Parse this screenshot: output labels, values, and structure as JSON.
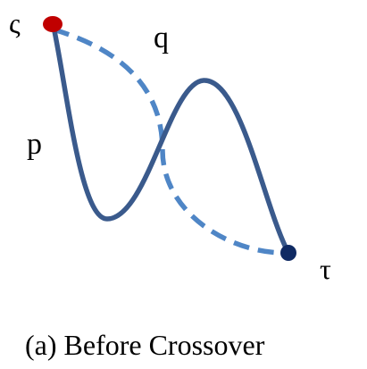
{
  "labels": {
    "start": "ς",
    "end": "τ",
    "path_p": "p",
    "path_q": "q"
  },
  "caption": "(a)  Before Crossover",
  "colors": {
    "start_node": "#c00000",
    "end_node": "#0f2a63",
    "path_p": "#3a5a8c",
    "path_q": "#4f86c6"
  }
}
